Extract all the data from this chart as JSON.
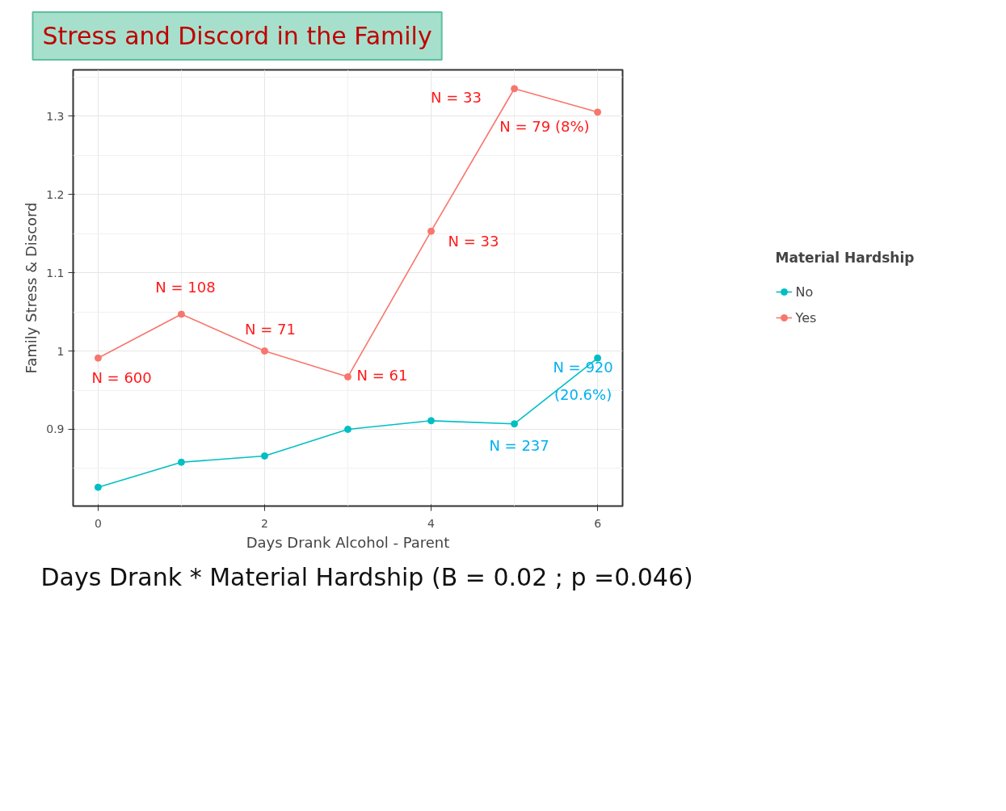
{
  "chart_data": {
    "type": "line",
    "title": "Stress and Discord in the Family",
    "xlabel": "Days Drank Alcohol - Parent",
    "ylabel": "Family Stress & Discord",
    "legend_title": "Material Hardship",
    "x": [
      0,
      1,
      2,
      3,
      4,
      5,
      6
    ],
    "series": [
      {
        "name": "No",
        "color": "#00bfc4",
        "values": [
          0.826,
          0.858,
          0.866,
          0.9,
          0.911,
          0.907,
          0.991
        ]
      },
      {
        "name": "Yes",
        "color": "#f8766d",
        "values": [
          0.991,
          1.047,
          1.0,
          0.967,
          1.153,
          1.335,
          1.305
        ]
      }
    ],
    "xlim": [
      -0.3,
      6.3
    ],
    "xticks": [
      0,
      2,
      4,
      6
    ],
    "ylim": [
      0.802,
      1.359
    ],
    "yticks": [
      0.9,
      1.0,
      1.1,
      1.2,
      1.3
    ],
    "grid": true,
    "legend": "right",
    "marker": "circle",
    "line_style": "solid",
    "annotations": [
      {
        "text": "N = 600",
        "x": 0,
        "y": 0.991
      },
      {
        "text": "N = 108",
        "x": 1,
        "y": 1.047
      },
      {
        "text": "N = 71",
        "x": 2,
        "y": 1.0
      },
      {
        "text": "N = 61",
        "x": 3,
        "y": 0.967
      },
      {
        "text": "N = 33",
        "x": 4,
        "y": 1.153
      },
      {
        "text": "N = 33",
        "x": 5,
        "y": 1.335
      },
      {
        "text": "N = 79 (8%)",
        "x": 6,
        "y": 1.305
      },
      {
        "text": "N = 920\n(20.6%)",
        "x": 6,
        "y": 0.991
      },
      {
        "text": "N = 237",
        "x": 5,
        "y": 0.907
      },
      "Days Drank * Material Hardship (B = 0.02 ; p =0.046)"
    ]
  }
}
